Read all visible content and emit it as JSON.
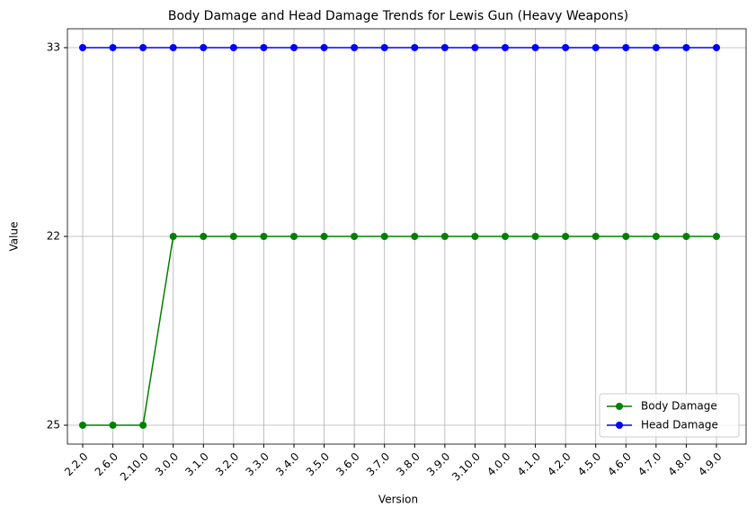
{
  "chart_data": {
    "type": "line",
    "title": "Body Damage and Head Damage Trends for Lewis Gun (Heavy Weapons)",
    "x_label": "Version",
    "y_label": "Value",
    "categories": [
      "2.2.0",
      "2.6.0",
      "2.10.0",
      "3.0.0",
      "3.1.0",
      "3.2.0",
      "3.3.0",
      "3.4.0",
      "3.5.0",
      "3.6.0",
      "3.7.0",
      "3.8.0",
      "3.9.0",
      "3.10.0",
      "4.0.0",
      "4.1.0",
      "4.2.0",
      "4.5.0",
      "4.6.0",
      "4.7.0",
      "4.8.0",
      "4.9.0"
    ],
    "ycategories": [
      25,
      22,
      33
    ],
    "series": [
      {
        "name": "Body Damage",
        "color": "#008000",
        "values": [
          25,
          25,
          25,
          22,
          22,
          22,
          22,
          22,
          22,
          22,
          22,
          22,
          22,
          22,
          22,
          22,
          22,
          22,
          22,
          22,
          22,
          22
        ]
      },
      {
        "name": "Head Damage",
        "color": "#0000ff",
        "values": [
          33,
          33,
          33,
          33,
          33,
          33,
          33,
          33,
          33,
          33,
          33,
          33,
          33,
          33,
          33,
          33,
          33,
          33,
          33,
          33,
          33,
          33
        ]
      }
    ],
    "grid": true,
    "legend": "lower right"
  }
}
